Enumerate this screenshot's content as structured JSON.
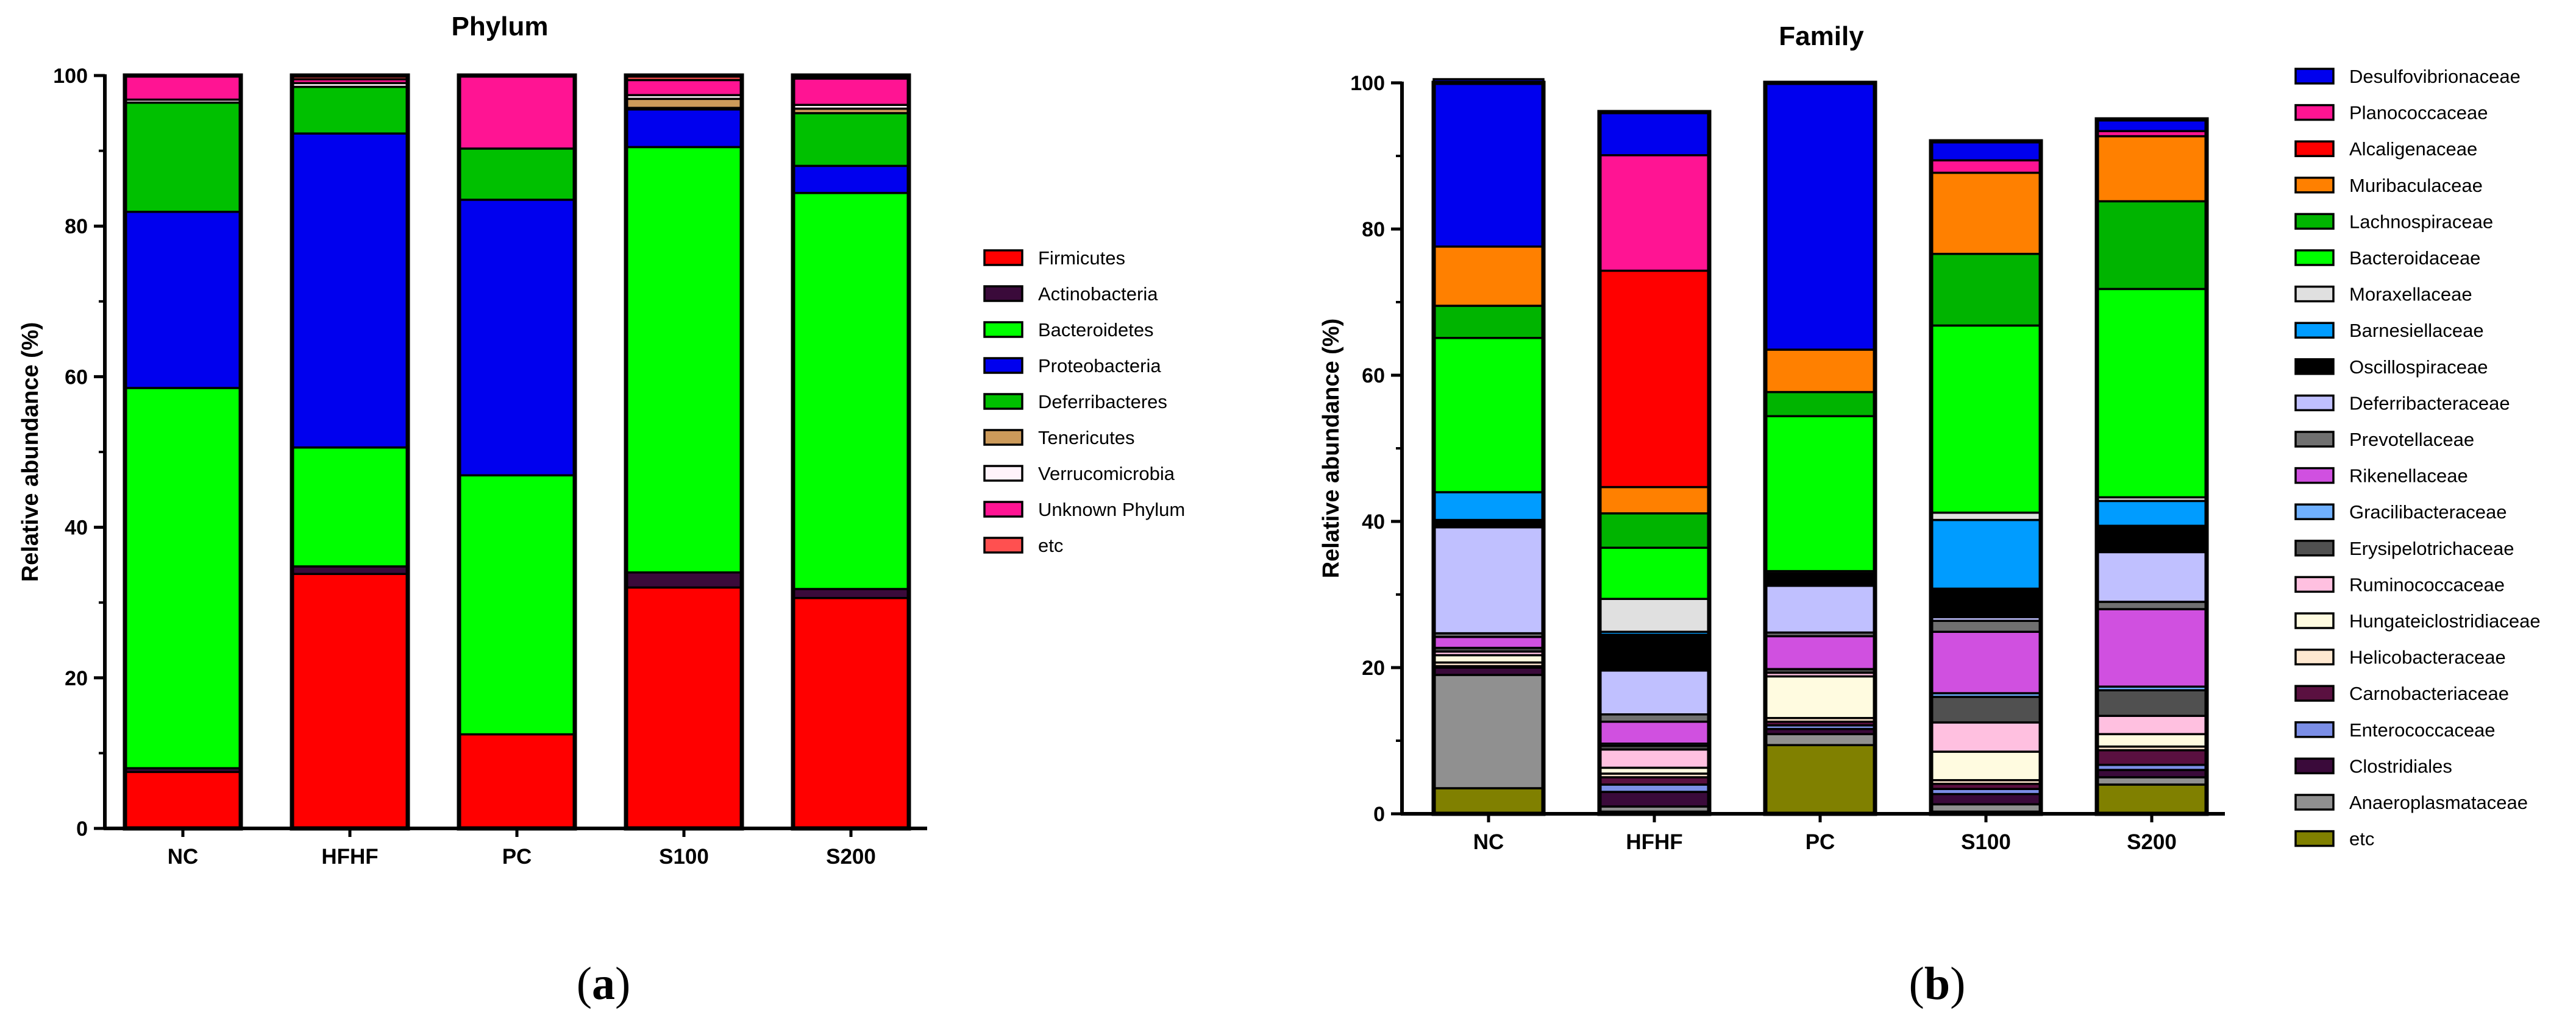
{
  "chart_data": [
    {
      "type": "stacked-bar",
      "title": "Phylum",
      "xlabel": "",
      "ylabel": "Relative abundance (%)",
      "ylim": [
        0,
        100
      ],
      "yticks": [
        "0",
        "20",
        "40",
        "60",
        "80",
        "100"
      ],
      "panel_prefix": "(",
      "panel_letter": "a",
      "panel_suffix": ")",
      "legend_position": "right",
      "categories": [
        "NC",
        "HFHF",
        "PC",
        "S100",
        "S200"
      ],
      "series": [
        {
          "name": "Firmicutes",
          "color": "#ff0000",
          "values": [
            7.5,
            33.8,
            12.5,
            32.0,
            30.6
          ]
        },
        {
          "name": "Actinobacteria",
          "color": "#3a0a3a",
          "values": [
            0.5,
            1.0,
            0.0,
            2.0,
            1.2
          ]
        },
        {
          "name": "Bacteroidetes",
          "color": "#00ff00",
          "values": [
            50.5,
            15.8,
            34.4,
            56.5,
            52.6
          ]
        },
        {
          "name": "Proteobacteria",
          "color": "#0000ee",
          "values": [
            23.4,
            41.7,
            36.6,
            5.0,
            3.6
          ]
        },
        {
          "name": "Deferribacteres",
          "color": "#00c000",
          "values": [
            14.5,
            6.2,
            6.8,
            0.2,
            7.0
          ]
        },
        {
          "name": "Tenericutes",
          "color": "#cc9a5a",
          "values": [
            0.0,
            0.0,
            0.0,
            1.2,
            0.6
          ]
        },
        {
          "name": "Verrucomicrobia",
          "color": "#fff3fa",
          "values": [
            0.4,
            0.5,
            0.0,
            0.5,
            0.5
          ]
        },
        {
          "name": "Unknown Phylum",
          "color": "#ff1493",
          "values": [
            3.2,
            0.5,
            9.7,
            2.0,
            3.5
          ]
        },
        {
          "name": "etc",
          "color": "#ff5050",
          "values": [
            0.0,
            0.5,
            0.0,
            0.6,
            0.4
          ]
        }
      ]
    },
    {
      "type": "stacked-bar",
      "title": "Family",
      "xlabel": "",
      "ylabel": "Relative abundance (%)",
      "ylim": [
        0,
        100
      ],
      "yticks": [
        "0",
        "20",
        "40",
        "60",
        "80",
        "100"
      ],
      "panel_prefix": "(",
      "panel_letter": "b",
      "panel_suffix": ")",
      "legend_position": "right",
      "categories": [
        "NC",
        "HFHF",
        "PC",
        "S100",
        "S200"
      ],
      "series": [
        {
          "name": "etc",
          "color": "#808000",
          "values": [
            3.5,
            0.3,
            9.4,
            0.3,
            4.0
          ]
        },
        {
          "name": "Anaeroplasmataceae",
          "color": "#909090",
          "values": [
            15.5,
            0.7,
            1.5,
            1.0,
            1.0
          ]
        },
        {
          "name": "Clostridiales",
          "color": "#3a0a3a",
          "values": [
            1.0,
            2.0,
            0.7,
            1.4,
            1.0
          ]
        },
        {
          "name": "Enterococcaceae",
          "color": "#7b8ee6",
          "values": [
            0.0,
            1.0,
            0.5,
            0.7,
            0.7
          ]
        },
        {
          "name": "Carnobacteriaceae",
          "color": "#5a1040",
          "values": [
            0.2,
            1.0,
            0.5,
            0.7,
            2.0
          ]
        },
        {
          "name": "Helicobacteraceae",
          "color": "#ffe8d0",
          "values": [
            0.5,
            0.5,
            0.5,
            0.5,
            0.5
          ]
        },
        {
          "name": "Hungateiclostridiaceae",
          "color": "#fffbe0",
          "values": [
            1.0,
            0.8,
            5.7,
            3.9,
            1.7
          ]
        },
        {
          "name": "Ruminococcaceae",
          "color": "#ffc0e0",
          "values": [
            0.5,
            2.5,
            0.5,
            4.0,
            2.5
          ]
        },
        {
          "name": "Erysipelotrichaceae",
          "color": "#505050",
          "values": [
            0.5,
            0.5,
            0.5,
            3.5,
            3.5
          ]
        },
        {
          "name": "Gracilibacteraceae",
          "color": "#6fb0ff",
          "values": [
            0.0,
            0.3,
            0.0,
            0.5,
            0.5
          ]
        },
        {
          "name": "Rikenellaceae",
          "color": "#d050e0",
          "values": [
            1.5,
            3.0,
            4.5,
            8.4,
            10.6
          ]
        },
        {
          "name": "Prevotellaceae",
          "color": "#707070",
          "values": [
            0.5,
            1.0,
            0.5,
            1.5,
            1.0
          ]
        },
        {
          "name": "Deferribacteraceae",
          "color": "#c0c0ff",
          "values": [
            14.5,
            6.0,
            6.4,
            0.5,
            6.8
          ]
        },
        {
          "name": "Oscillospiraceae",
          "color": "#000000",
          "values": [
            1.0,
            4.9,
            1.7,
            3.9,
            3.6
          ]
        },
        {
          "name": "Barnesiellaceae",
          "color": "#009cff",
          "values": [
            3.8,
            0.4,
            0.0,
            9.4,
            3.4
          ]
        },
        {
          "name": "Moraxellaceae",
          "color": "#e0e0e0",
          "values": [
            0.0,
            4.5,
            0.3,
            1.0,
            0.5
          ]
        },
        {
          "name": "Bacteroidaceae",
          "color": "#00ff00",
          "values": [
            21.1,
            7.0,
            21.2,
            25.6,
            28.5
          ]
        },
        {
          "name": "Lachnospiraceae",
          "color": "#00b400",
          "values": [
            4.4,
            4.7,
            3.3,
            9.8,
            12.0
          ]
        },
        {
          "name": "Muribaculaceae",
          "color": "#ff8000",
          "values": [
            8.1,
            3.6,
            5.8,
            11.1,
            8.9
          ]
        },
        {
          "name": "Alcaligenaceae",
          "color": "#ff0000",
          "values": [
            0.0,
            29.6,
            0.0,
            0.0,
            0.0
          ]
        },
        {
          "name": "Planococcaceae",
          "color": "#ff1493",
          "values": [
            0.0,
            15.8,
            0.0,
            1.7,
            0.7
          ]
        },
        {
          "name": "Desulfovibrionaceae",
          "color": "#0000ee",
          "values": [
            22.9,
            5.9,
            36.5,
            2.6,
            1.6
          ]
        }
      ],
      "legend_order": [
        "Desulfovibrionaceae",
        "Planococcaceae",
        "Alcaligenaceae",
        "Muribaculaceae",
        "Lachnospiraceae",
        "Bacteroidaceae",
        "Moraxellaceae",
        "Barnesiellaceae",
        "Oscillospiraceae",
        "Deferribacteraceae",
        "Prevotellaceae",
        "Rikenellaceae",
        "Gracilibacteraceae",
        "Erysipelotrichaceae",
        "Ruminococcaceae",
        "Hungateiclostridiaceae",
        "Helicobacteraceae",
        "Carnobacteriaceae",
        "Enterococcaceae",
        "Clostridiales",
        "Anaeroplasmataceae",
        "etc"
      ]
    }
  ]
}
